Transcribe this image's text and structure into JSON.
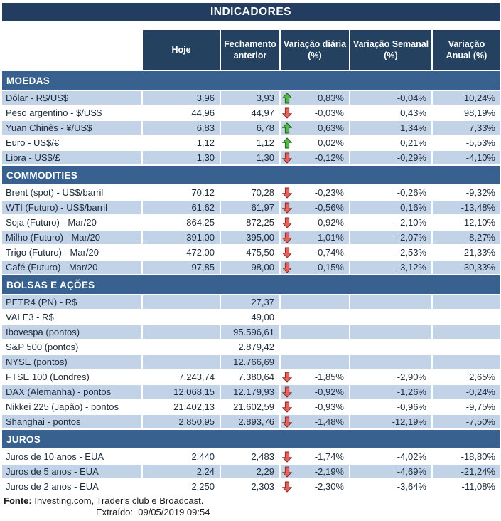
{
  "title": "INDICADORES",
  "columns": [
    {
      "line1": "Hoje",
      "line2": ""
    },
    {
      "line1": "Fechamento",
      "line2": "anterior"
    },
    {
      "line1": "Variação diária",
      "line2": "(%)"
    },
    {
      "line1": "Variação Semanal",
      "line2": "(%)"
    },
    {
      "line1": "Variação",
      "line2": "Anual (%)"
    }
  ],
  "sections": [
    {
      "name": "MOEDAS",
      "rows": [
        {
          "label": "Dólar - R$/US$",
          "hoje": "3,96",
          "fechamento": "3,93",
          "arrow": "up",
          "diaria": "0,83%",
          "semanal": "-0,04%",
          "anual": "10,24%",
          "shade": true
        },
        {
          "label": "Peso argentino - $/US$",
          "hoje": "44,96",
          "fechamento": "44,97",
          "arrow": "down",
          "diaria": "-0,03%",
          "semanal": "0,43%",
          "anual": "98,19%",
          "shade": false
        },
        {
          "label": "Yuan Chinês - ¥/US$",
          "hoje": "6,83",
          "fechamento": "6,78",
          "arrow": "up",
          "diaria": "0,63%",
          "semanal": "1,34%",
          "anual": "7,33%",
          "shade": true
        },
        {
          "label": "Euro - US$/€",
          "hoje": "1,12",
          "fechamento": "1,12",
          "arrow": "up",
          "diaria": "0,02%",
          "semanal": "0,21%",
          "anual": "-5,53%",
          "shade": false
        },
        {
          "label": "Libra - US$/£",
          "hoje": "1,30",
          "fechamento": "1,30",
          "arrow": "down",
          "diaria": "-0,12%",
          "semanal": "-0,29%",
          "anual": "-4,10%",
          "shade": true
        }
      ]
    },
    {
      "name": "COMMODITIES",
      "rows": [
        {
          "label": "Brent (spot) - US$/barril",
          "hoje": "70,12",
          "fechamento": "70,28",
          "arrow": "down",
          "diaria": "-0,23%",
          "semanal": "-0,26%",
          "anual": "-9,32%",
          "shade": false
        },
        {
          "label": "WTI (Futuro) - US$/barril",
          "hoje": "61,62",
          "fechamento": "61,97",
          "arrow": "down",
          "diaria": "-0,56%",
          "semanal": "0,16%",
          "anual": "-13,48%",
          "shade": true
        },
        {
          "label": "Soja (Futuro) - Mar/20",
          "hoje": "864,25",
          "fechamento": "872,25",
          "arrow": "down",
          "diaria": "-0,92%",
          "semanal": "-2,10%",
          "anual": "-12,10%",
          "shade": false
        },
        {
          "label": "Milho (Futuro) - Mar/20",
          "hoje": "391,00",
          "fechamento": "395,00",
          "arrow": "down",
          "diaria": "-1,01%",
          "semanal": "-2,07%",
          "anual": "-8,27%",
          "shade": true
        },
        {
          "label": "Trigo (Futuro) - Mar/20",
          "hoje": "472,00",
          "fechamento": "475,50",
          "arrow": "down",
          "diaria": "-0,74%",
          "semanal": "-2,53%",
          "anual": "-21,33%",
          "shade": false
        },
        {
          "label": "Café (Futuro) - Mar/20",
          "hoje": "97,85",
          "fechamento": "98,00",
          "arrow": "down",
          "diaria": "-0,15%",
          "semanal": "-3,12%",
          "anual": "-30,33%",
          "shade": true
        }
      ]
    },
    {
      "name": "BOLSAS E AÇÕES",
      "rows": [
        {
          "label": "PETR4 (PN) - R$",
          "hoje": "",
          "fechamento": "27,37",
          "arrow": "",
          "diaria": "",
          "semanal": "",
          "anual": "",
          "shade": true
        },
        {
          "label": "VALE3 - R$",
          "hoje": "",
          "fechamento": "49,00",
          "arrow": "",
          "diaria": "",
          "semanal": "",
          "anual": "",
          "shade": false
        },
        {
          "label": "Ibovespa (pontos)",
          "hoje": "",
          "fechamento": "95.596,61",
          "arrow": "",
          "diaria": "",
          "semanal": "",
          "anual": "",
          "shade": true
        },
        {
          "label": "S&P 500 (pontos)",
          "hoje": "",
          "fechamento": "2.879,42",
          "arrow": "",
          "diaria": "",
          "semanal": "",
          "anual": "",
          "shade": false
        },
        {
          "label": "NYSE (pontos)",
          "hoje": "",
          "fechamento": "12.766,69",
          "arrow": "",
          "diaria": "",
          "semanal": "",
          "anual": "",
          "shade": true
        },
        {
          "label": "FTSE 100 (Londres)",
          "hoje": "7.243,74",
          "fechamento": "7.380,64",
          "arrow": "down",
          "diaria": "-1,85%",
          "semanal": "-2,90%",
          "anual": "2,65%",
          "shade": false
        },
        {
          "label": "DAX (Alemanha) - pontos",
          "hoje": "12.068,15",
          "fechamento": "12.179,93",
          "arrow": "down",
          "diaria": "-0,92%",
          "semanal": "-1,26%",
          "anual": "-0,24%",
          "shade": true
        },
        {
          "label": "Nikkei 225 (Japão) - pontos",
          "hoje": "21.402,13",
          "fechamento": "21.602,59",
          "arrow": "down",
          "diaria": "-0,93%",
          "semanal": "-0,96%",
          "anual": "-9,75%",
          "shade": false
        },
        {
          "label": "Shanghai - pontos",
          "hoje": "2.850,95",
          "fechamento": "2.893,76",
          "arrow": "down",
          "diaria": "-1,48%",
          "semanal": "-12,19%",
          "anual": "-7,50%",
          "shade": true
        }
      ]
    },
    {
      "name": "JUROS",
      "rows": [
        {
          "label": "Juros de 10 anos - EUA",
          "hoje": "2,440",
          "fechamento": "2,483",
          "arrow": "down",
          "diaria": "-1,74%",
          "semanal": "-4,02%",
          "anual": "-18,80%",
          "shade": false
        },
        {
          "label": "Juros de 5 anos - EUA",
          "hoje": "2,24",
          "fechamento": "2,29",
          "arrow": "down",
          "diaria": "-2,19%",
          "semanal": "-4,69%",
          "anual": "-21,24%",
          "shade": true
        },
        {
          "label": "Juros de 2 anos - EUA",
          "hoje": "2,250",
          "fechamento": "2,303",
          "arrow": "down",
          "diaria": "-2,30%",
          "semanal": "-3,64%",
          "anual": "-11,08%",
          "shade": false
        }
      ]
    }
  ],
  "footer": {
    "fonte_label": "Fonte:",
    "fonte_text": " Investing.com, Trader's club e Broadcast.",
    "extraido": "Extraído:  09/05/2019 09:54"
  },
  "icons": {
    "up": "up-arrow-icon",
    "down": "down-arrow-icon"
  },
  "colors": {
    "navy": "#223D5F",
    "header_cell": "#24425F",
    "section": "#38618F",
    "stripe": "#C3D3E7",
    "text": "#1C2B3A",
    "up_arrow_fill": "#53BA47",
    "up_arrow_border": "#1B611F",
    "down_arrow_fill": "#E4635C",
    "down_arrow_border": "#8E2A25"
  }
}
